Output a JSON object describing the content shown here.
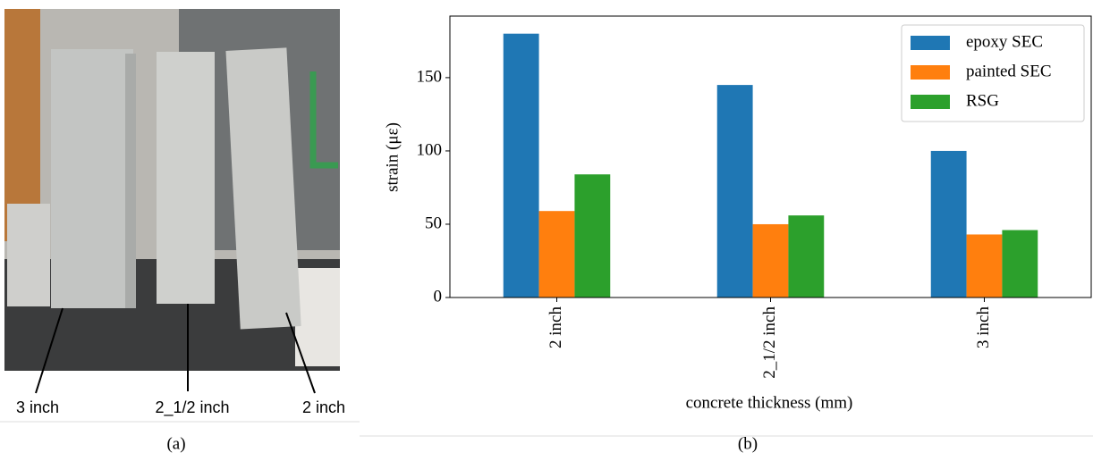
{
  "photo": {
    "labels": [
      "3 inch",
      "2_1/2 inch",
      "2 inch"
    ],
    "panel_label": "(a)"
  },
  "chart_data": {
    "type": "bar",
    "panel_label": "(b)",
    "x_label": "concrete thickness (mm)",
    "y_label": "strain (με)",
    "categories": [
      "2 inch",
      "2_1/2 inch",
      "3 inch"
    ],
    "series": [
      {
        "name": "epoxy SEC",
        "color": "#1f77b4",
        "values": [
          180,
          145,
          100
        ]
      },
      {
        "name": "painted SEC",
        "color": "#ff7f0e",
        "values": [
          59,
          50,
          43
        ]
      },
      {
        "name": "RSG",
        "color": "#2ca02c",
        "values": [
          84,
          56,
          46
        ]
      }
    ],
    "ylim": [
      0,
      192
    ],
    "yticks": [
      0,
      50,
      100,
      150
    ],
    "legend": "upper right"
  }
}
